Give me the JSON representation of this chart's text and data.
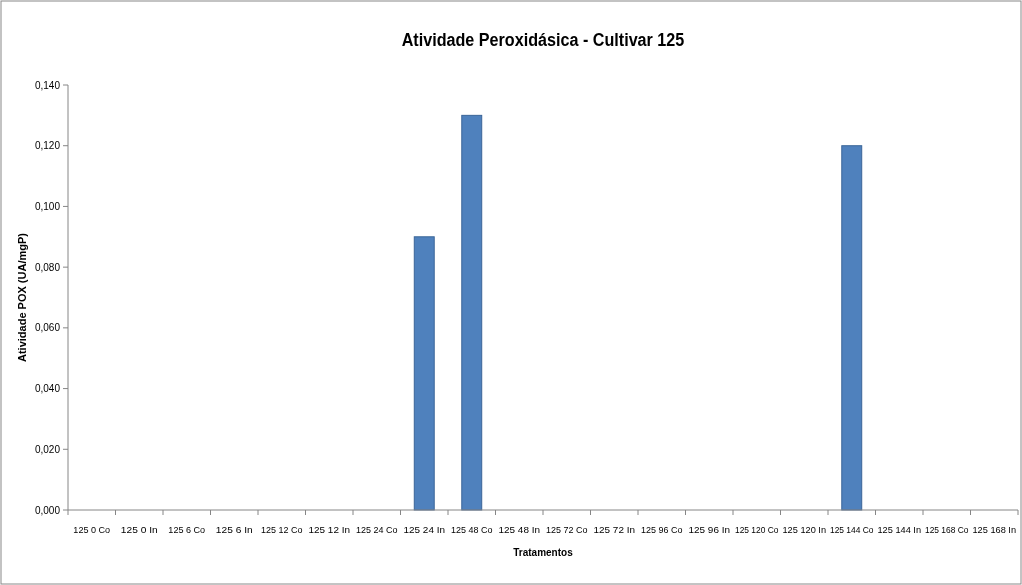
{
  "chart_data": {
    "type": "bar",
    "title": "Atividade Peroxidásica - Cultivar 125",
    "xlabel": "Tratamentos",
    "ylabel": "Atividade POX (UA/mgP)",
    "categories": [
      "125 0 Co",
      "125 0 In",
      "125 6 Co",
      "125 6 In",
      "125 12 Co",
      "125 12 In",
      "125 24 Co",
      "125 24 In",
      "125 48 Co",
      "125 48 In",
      "125 72 Co",
      "125 72 In",
      "125 96 Co",
      "125 96 In",
      "125 120 Co",
      "125 120 In",
      "125 144 Co",
      "125 144 In",
      "125 168 Co",
      "125 168 In"
    ],
    "values": [
      0,
      0,
      0,
      0,
      0,
      0,
      0,
      0.09,
      0.13,
      0,
      0,
      0,
      0,
      0,
      0,
      0,
      0.12,
      0,
      0,
      0
    ],
    "color": "#4f81bd",
    "ylim": [
      0,
      0.14
    ],
    "yticks": [
      {
        "value": 0,
        "label": "0,000"
      },
      {
        "value": 0.02,
        "label": "0,020"
      },
      {
        "value": 0.04,
        "label": "0,040"
      },
      {
        "value": 0.06,
        "label": "0,060"
      },
      {
        "value": 0.08,
        "label": "0,080"
      },
      {
        "value": 0.1,
        "label": "0,100"
      },
      {
        "value": 0.12,
        "label": "0,120"
      },
      {
        "value": 0.14,
        "label": "0,140"
      }
    ],
    "grid": false
  }
}
